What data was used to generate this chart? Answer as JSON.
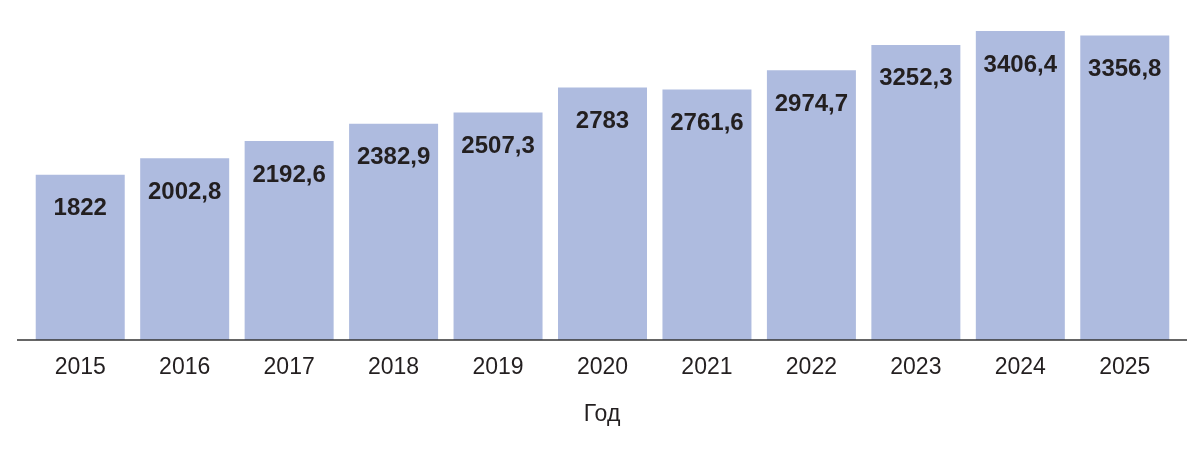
{
  "chart_data": {
    "type": "bar",
    "xlabel": "Год",
    "categories": [
      "2015",
      "2016",
      "2017",
      "2018",
      "2019",
      "2020",
      "2021",
      "2022",
      "2023",
      "2024",
      "2025"
    ],
    "values": [
      1822,
      2002.8,
      2192.6,
      2382.9,
      2507.3,
      2783,
      2761.6,
      2974.7,
      3252.3,
      3406.4,
      3356.8
    ],
    "value_labels": [
      "1822",
      "2002,8",
      "2192,6",
      "2382,9",
      "2507,3",
      "2783",
      "2761,6",
      "2974,7",
      "3252,3",
      "3406,4",
      "3356,8"
    ],
    "color": "#aebbdf"
  }
}
